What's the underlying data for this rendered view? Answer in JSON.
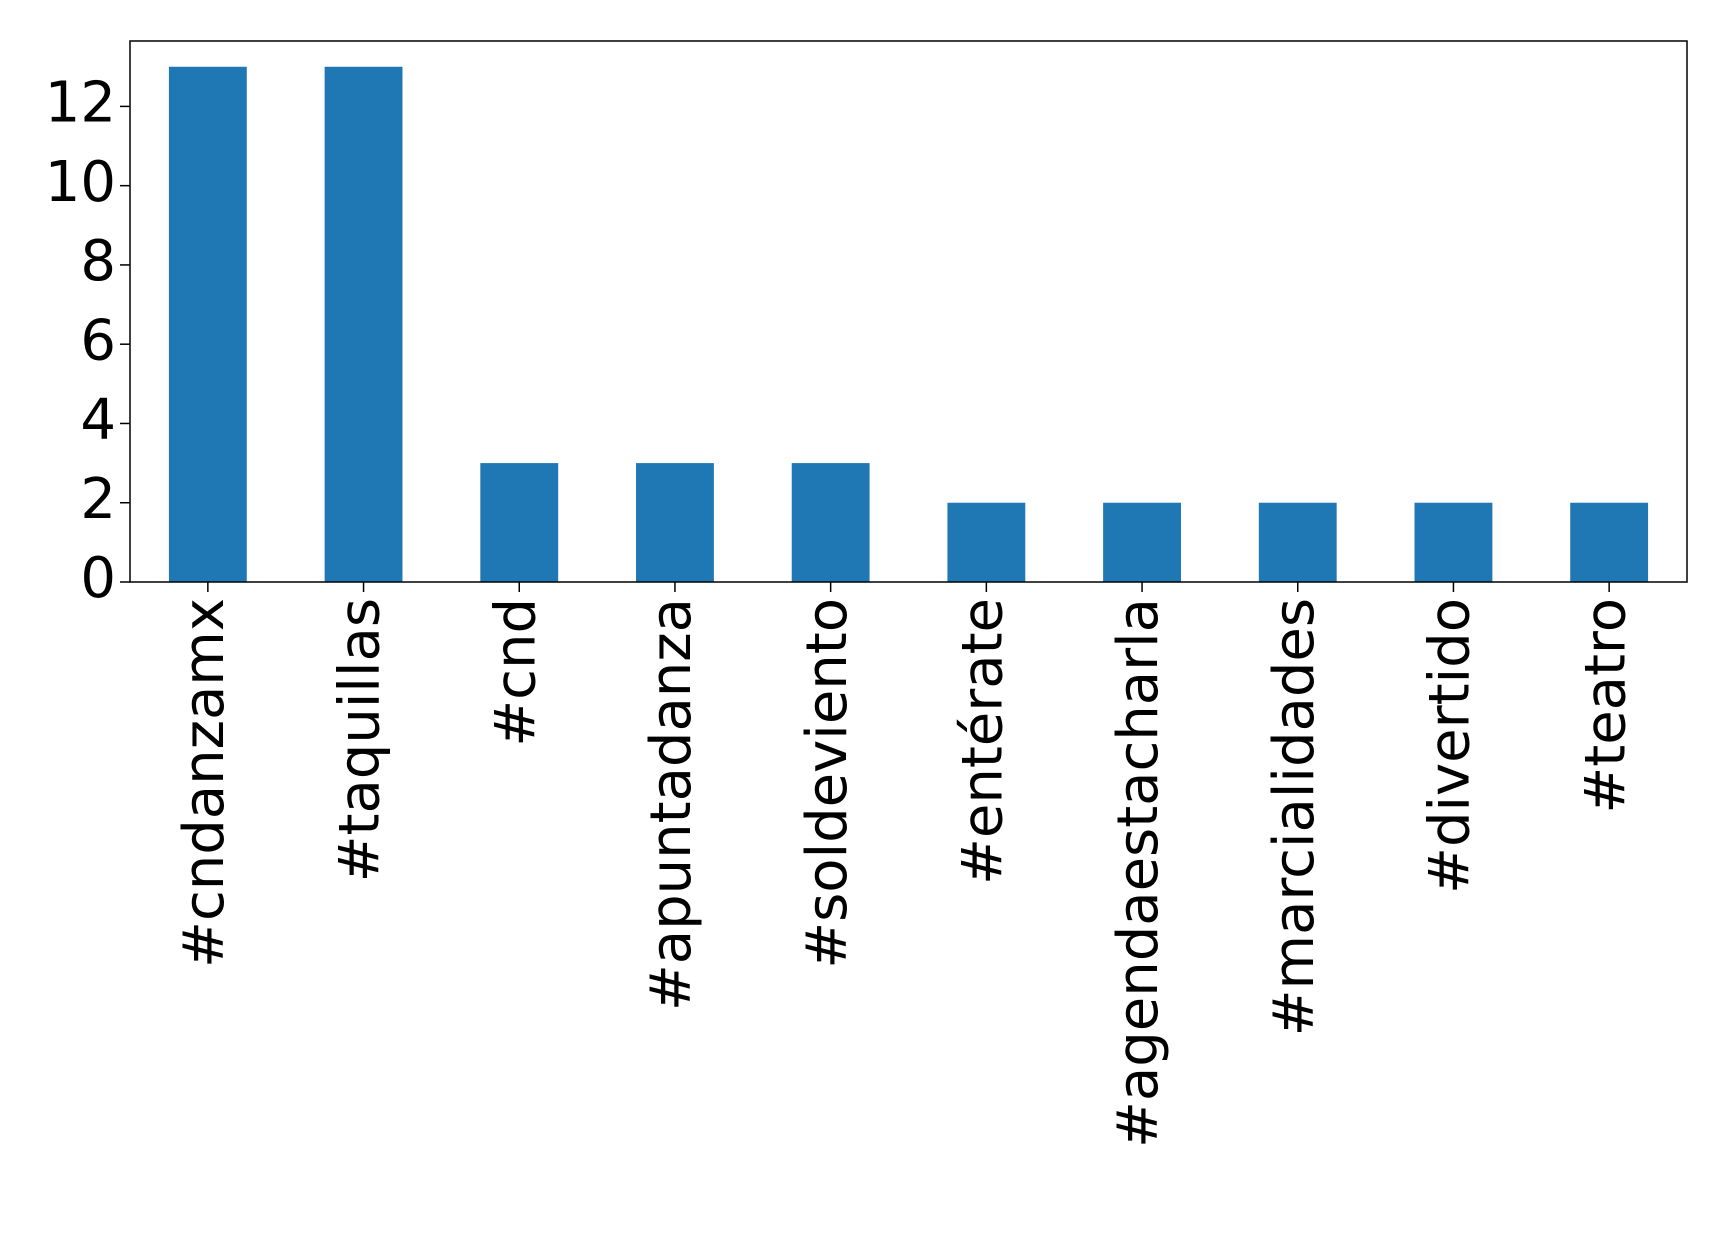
{
  "chart_data": {
    "type": "bar",
    "categories": [
      "#cndanzamx",
      "#taquillas",
      "#cnd",
      "#apuntadanza",
      "#soldeviento",
      "#entérate",
      "#agendaestacharla",
      "#marcialidades",
      "#divertido",
      "#teatro"
    ],
    "values": [
      13,
      13,
      3,
      3,
      3,
      2,
      2,
      2,
      2,
      2
    ],
    "color": "#1f77b4",
    "ylim": [
      0,
      13.65
    ],
    "yticks": [
      0,
      2,
      4,
      6,
      8,
      10,
      12
    ],
    "grid": false
  }
}
